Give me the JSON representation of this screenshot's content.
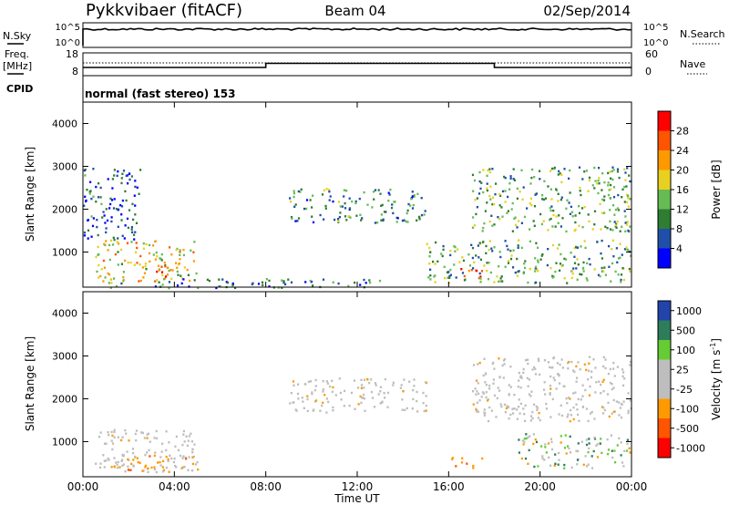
{
  "header": {
    "station": "Pykkvibaer (fitACF)",
    "beam": "Beam 04",
    "date": "02/Sep/2014"
  },
  "noise_panel": {
    "left_label": "N.Sky",
    "right_label": "N.Search",
    "left_ticks": [
      "10^5",
      "10^0"
    ],
    "right_ticks": [
      "10^5",
      "10^0"
    ]
  },
  "freq_panel": {
    "left_label": "Freq.",
    "left_unit": "[MHz]",
    "right_label": "Nave",
    "left_ticks": [
      "18",
      "8"
    ],
    "right_ticks": [
      "60",
      "0"
    ]
  },
  "cpid_panel": {
    "label": "CPID",
    "text": "normal (fast stereo) 153"
  },
  "colors": {
    "background": "#ffffff",
    "ground_scatter": "#bebebe",
    "power_scale": [
      "#0000ff",
      "#1f4fa8",
      "#2e7d32",
      "#66bb55",
      "#e8d020",
      "#ff9900",
      "#ff5500",
      "#ff0000"
    ],
    "velocity_scale": [
      "#ff0000",
      "#ff5500",
      "#ff9900",
      "#bebebe",
      "#bebebe",
      "#66cc33",
      "#2e7d5a",
      "#2244aa"
    ]
  },
  "chart_data": [
    {
      "type": "heatmap",
      "name": "power",
      "ylabel": "Slant Range [km]",
      "y_ticks": [
        "1000",
        "2000",
        "3000",
        "4000"
      ],
      "ylim": [
        180,
        4500
      ],
      "xlim": [
        "00:00",
        "24:00"
      ],
      "colorbar": {
        "label": "Power [dB]",
        "ticks": [
          "4",
          "8",
          "12",
          "16",
          "20",
          "24",
          "28"
        ],
        "range": [
          0,
          32
        ]
      },
      "echo_regions": [
        {
          "t0": 0.5,
          "t1": 5.0,
          "r0": 300,
          "r1": 1300,
          "level": 18
        },
        {
          "t0": 0.0,
          "t1": 2.5,
          "r0": 1300,
          "r1": 3000,
          "level": 6
        },
        {
          "t0": 3.0,
          "t1": 4.0,
          "r0": 300,
          "r1": 700,
          "level": 26
        },
        {
          "t0": 1.0,
          "t1": 13.0,
          "r0": 180,
          "r1": 400,
          "level": 8
        },
        {
          "t0": 9.0,
          "t1": 15.0,
          "r0": 1700,
          "r1": 2500,
          "level": 10
        },
        {
          "t0": 16.0,
          "t1": 17.5,
          "r0": 400,
          "r1": 650,
          "level": 28
        },
        {
          "t0": 15.0,
          "t1": 24.0,
          "r0": 300,
          "r1": 1300,
          "level": 12
        },
        {
          "t0": 17.0,
          "t1": 24.0,
          "r0": 1500,
          "r1": 3000,
          "level": 12
        }
      ]
    },
    {
      "type": "heatmap",
      "name": "velocity",
      "ylabel": "Slant Range [km]",
      "xlabel": "Time UT",
      "y_ticks": [
        "1000",
        "2000",
        "3000",
        "4000"
      ],
      "x_ticks": [
        "00:00",
        "04:00",
        "08:00",
        "12:00",
        "16:00",
        "20:00",
        "00:00"
      ],
      "ylim": [
        180,
        4500
      ],
      "xlim": [
        "00:00",
        "24:00"
      ],
      "colorbar": {
        "label": "Velocity [m s",
        "label_superscript": "-1",
        "label_close": "]",
        "ticks": [
          "-1000",
          "-500",
          "-100",
          "-25",
          "25",
          "100",
          "500",
          "1000"
        ]
      },
      "echo_regions": [
        {
          "t0": 0.5,
          "t1": 5.0,
          "r0": 300,
          "r1": 1300,
          "class": "ground"
        },
        {
          "t0": 1.0,
          "t1": 5.0,
          "r0": 300,
          "r1": 700,
          "class": "negative"
        },
        {
          "t0": 9.0,
          "t1": 15.0,
          "r0": 1700,
          "r1": 2500,
          "class": "ground"
        },
        {
          "t0": 16.0,
          "t1": 17.5,
          "r0": 400,
          "r1": 650,
          "class": "negative"
        },
        {
          "t0": 17.0,
          "t1": 24.0,
          "r0": 1500,
          "r1": 3000,
          "class": "ground"
        },
        {
          "t0": 19.0,
          "t1": 24.0,
          "r0": 400,
          "r1": 1200,
          "class": "mixed"
        }
      ]
    }
  ]
}
